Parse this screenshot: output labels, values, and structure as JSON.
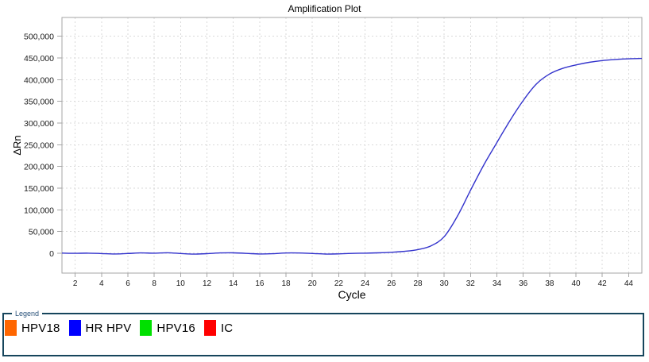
{
  "chart_data": {
    "type": "line",
    "title": "Amplification Plot",
    "xlabel": "Cycle",
    "ylabel": "ΔRn",
    "xlim": [
      1,
      45
    ],
    "ylim": [
      -45700,
      543300
    ],
    "grid": "dashed",
    "legend_position": "bottom-panel",
    "x_ticks": {
      "values": [
        2,
        4,
        6,
        8,
        10,
        12,
        14,
        16,
        18,
        20,
        22,
        24,
        26,
        28,
        30,
        32,
        34,
        36,
        38,
        40,
        42,
        44
      ]
    },
    "y_ticks": {
      "values": [
        0,
        50000,
        100000,
        150000,
        200000,
        250000,
        300000,
        350000,
        400000,
        450000,
        500000
      ],
      "labels": [
        "0",
        "50,000",
        "100,000",
        "150,000",
        "200,000",
        "250,000",
        "300,000",
        "350,000",
        "400,000",
        "450,000",
        "500,000"
      ]
    },
    "series": [
      {
        "name": "HR HPV",
        "color": "#3333CC",
        "x": [
          1,
          2,
          3,
          4,
          5,
          6,
          7,
          8,
          9,
          10,
          11,
          12,
          13,
          14,
          15,
          16,
          17,
          18,
          19,
          20,
          21,
          22,
          23,
          24,
          25,
          26,
          27,
          28,
          29,
          30,
          31,
          32,
          33,
          34,
          35,
          36,
          37,
          38,
          39,
          40,
          41,
          42,
          43,
          44,
          45
        ],
        "values": [
          400,
          -200,
          300,
          -700,
          -1600,
          -600,
          700,
          300,
          1100,
          -500,
          -1900,
          -900,
          700,
          1000,
          -300,
          -1700,
          -1100,
          600,
          600,
          -500,
          -1800,
          -1400,
          -300,
          300,
          1000,
          2200,
          4500,
          8500,
          17000,
          38000,
          85000,
          145000,
          203000,
          255000,
          306000,
          352000,
          390000,
          413000,
          426000,
          434000,
          440000,
          444000,
          446500,
          448000,
          449000
        ]
      }
    ]
  },
  "legend": {
    "title": "Legend",
    "border_color": "#16455C",
    "items": [
      {
        "label": "HPV18",
        "color": "#FF6600"
      },
      {
        "label": "HR HPV",
        "color": "#0000FF"
      },
      {
        "label": "HPV16",
        "color": "#00E000"
      },
      {
        "label": "IC",
        "color": "#FF0000"
      }
    ]
  },
  "colors": {
    "grid": "#D9D9D9",
    "frame": "#A6A6A6",
    "tick_text": "#1A1A1A"
  }
}
